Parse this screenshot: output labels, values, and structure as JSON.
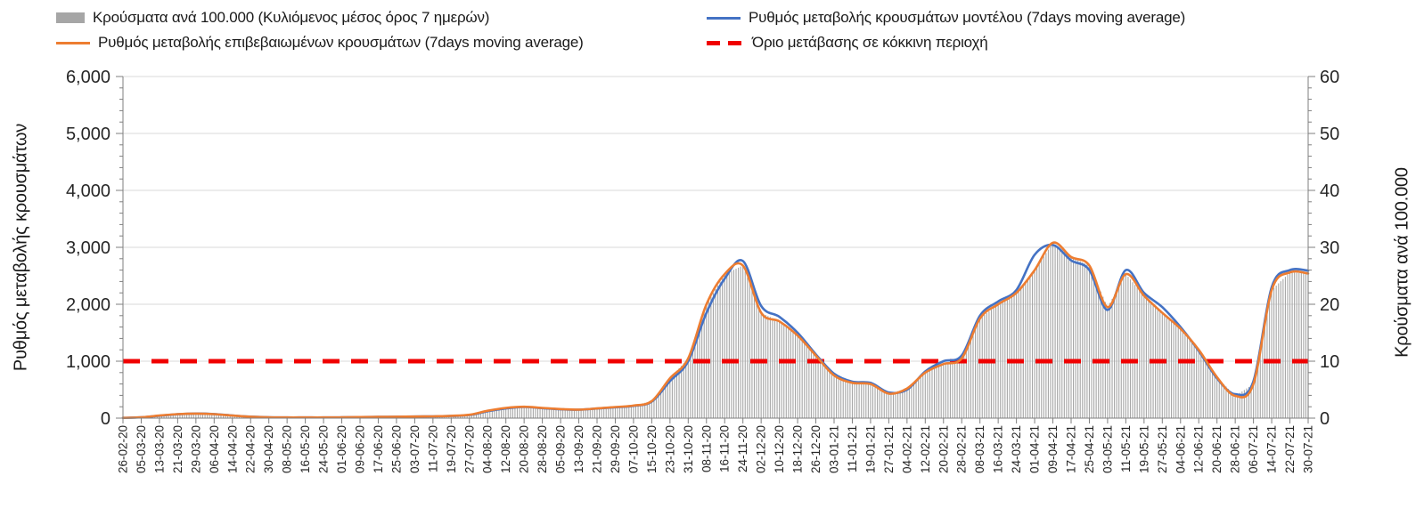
{
  "legend": {
    "items": [
      {
        "label": "Κρούσματα ανά 100.000 (Κυλιόμενος μέσος όρος 7 ημερών)",
        "marker": "bar",
        "color": "#A6A6A6"
      },
      {
        "label": "Ρυθμός μεταβολής κρουσμάτων μοντέλου (7days moving average)",
        "marker": "line",
        "color": "#4472C4"
      },
      {
        "label": "Ρυθμός μεταβολής επιβεβαιωμένων κρουσμάτων (7days moving average)",
        "marker": "line",
        "color": "#ED7D31"
      },
      {
        "label": "Όριο μετάβασης σε κόκκινη περιοχή",
        "marker": "dashed-line",
        "color": "#F00000"
      }
    ]
  },
  "chart_data": {
    "type": "bar",
    "subtype": "combo-bar-line-dual-axis",
    "grid": "horizontal",
    "legend_position": "top",
    "categories": [
      "26-02-20",
      "05-03-20",
      "13-03-20",
      "21-03-20",
      "29-03-20",
      "06-04-20",
      "14-04-20",
      "22-04-20",
      "30-04-20",
      "08-05-20",
      "16-05-20",
      "24-05-20",
      "01-06-20",
      "09-06-20",
      "17-06-20",
      "25-06-20",
      "03-07-20",
      "11-07-20",
      "19-07-20",
      "27-07-20",
      "04-08-20",
      "12-08-20",
      "20-08-20",
      "28-08-20",
      "05-09-20",
      "13-09-20",
      "21-09-20",
      "29-09-20",
      "07-10-20",
      "15-10-20",
      "23-10-20",
      "31-10-20",
      "08-11-20",
      "16-11-20",
      "24-11-20",
      "02-12-20",
      "10-12-20",
      "18-12-20",
      "26-12-20",
      "03-01-21",
      "11-01-21",
      "19-01-21",
      "27-01-21",
      "04-02-21",
      "12-02-21",
      "20-02-21",
      "28-02-21",
      "08-03-21",
      "16-03-21",
      "24-03-21",
      "01-04-21",
      "09-04-21",
      "17-04-21",
      "25-04-21",
      "03-05-21",
      "11-05-21",
      "19-05-21",
      "27-05-21",
      "04-06-21",
      "12-06-21",
      "20-06-21",
      "28-06-21",
      "06-07-21",
      "14-07-21",
      "22-07-21",
      "30-07-21"
    ],
    "left_axis": {
      "title": "Ρυθμός μεταβολής κρουσμάτων",
      "min": 0,
      "max": 6000,
      "major_step": 1000,
      "minor_step": 200,
      "tick_labels": [
        "0",
        "1,000",
        "2,000",
        "3,000",
        "4,000",
        "5,000",
        "6,000"
      ]
    },
    "right_axis": {
      "title": "Κρούσματα ανά 100.000",
      "min": 0,
      "max": 60,
      "major_step": 10,
      "minor_step": 2,
      "tick_labels": [
        "0",
        "10",
        "20",
        "30",
        "40",
        "50",
        "60"
      ]
    },
    "series": [
      {
        "name": "Κρούσματα ανά 100.000 (Κυλιόμενος μέσος όρος 7 ημερών)",
        "type": "bar",
        "axis": "right",
        "color": "#A6A6A6",
        "values": [
          0.05,
          0.15,
          0.45,
          0.7,
          0.8,
          0.7,
          0.45,
          0.25,
          0.15,
          0.12,
          0.12,
          0.12,
          0.14,
          0.18,
          0.22,
          0.25,
          0.28,
          0.32,
          0.4,
          0.6,
          1.3,
          1.8,
          2.0,
          1.8,
          1.6,
          1.5,
          1.7,
          1.95,
          2.2,
          3.0,
          7.0,
          10.5,
          20.0,
          25.3,
          26.8,
          18.5,
          17.0,
          14.5,
          11.0,
          7.5,
          6.2,
          6.0,
          4.3,
          5.2,
          8.0,
          9.5,
          10.5,
          17.5,
          20.0,
          22.0,
          26.0,
          30.8,
          28.3,
          26.8,
          19.5,
          25.3,
          21.5,
          18.5,
          15.7,
          12.0,
          7.2,
          3.9,
          6.0,
          22.5,
          25.6,
          25.4
        ]
      },
      {
        "name": "Ρυθμός μεταβολής κρουσμάτων μοντέλου (7days moving average)",
        "type": "line",
        "axis": "left",
        "color": "#4472C4",
        "values": [
          5,
          14,
          42,
          68,
          82,
          72,
          47,
          26,
          16,
          12,
          12,
          12,
          14,
          18,
          22,
          25,
          28,
          32,
          38,
          55,
          120,
          170,
          195,
          175,
          155,
          148,
          168,
          190,
          215,
          290,
          650,
          1000,
          1850,
          2450,
          2760,
          1970,
          1780,
          1500,
          1120,
          780,
          640,
          620,
          450,
          500,
          820,
          1000,
          1100,
          1800,
          2050,
          2250,
          2870,
          3040,
          2770,
          2600,
          1900,
          2600,
          2200,
          1950,
          1600,
          1180,
          700,
          420,
          650,
          2300,
          2600,
          2590
        ]
      },
      {
        "name": "Ρυθμός μεταβολής επιβεβαιωμένων κρουσμάτων (7days moving average)",
        "type": "line",
        "axis": "left",
        "color": "#ED7D31",
        "values": [
          5,
          15,
          45,
          70,
          80,
          70,
          45,
          25,
          15,
          12,
          12,
          12,
          14,
          18,
          22,
          25,
          28,
          32,
          40,
          60,
          130,
          180,
          200,
          180,
          160,
          150,
          170,
          195,
          220,
          300,
          700,
          1050,
          2000,
          2530,
          2680,
          1850,
          1700,
          1450,
          1100,
          750,
          620,
          600,
          430,
          520,
          800,
          950,
          1050,
          1750,
          2000,
          2200,
          2600,
          3080,
          2830,
          2680,
          1950,
          2530,
          2150,
          1850,
          1570,
          1200,
          720,
          390,
          600,
          2250,
          2560,
          2540
        ]
      },
      {
        "name": "Όριο μετάβασης σε κόκκινη περιοχή",
        "type": "threshold-line",
        "axis": "left",
        "color": "#F00000",
        "value": 1000
      }
    ]
  }
}
